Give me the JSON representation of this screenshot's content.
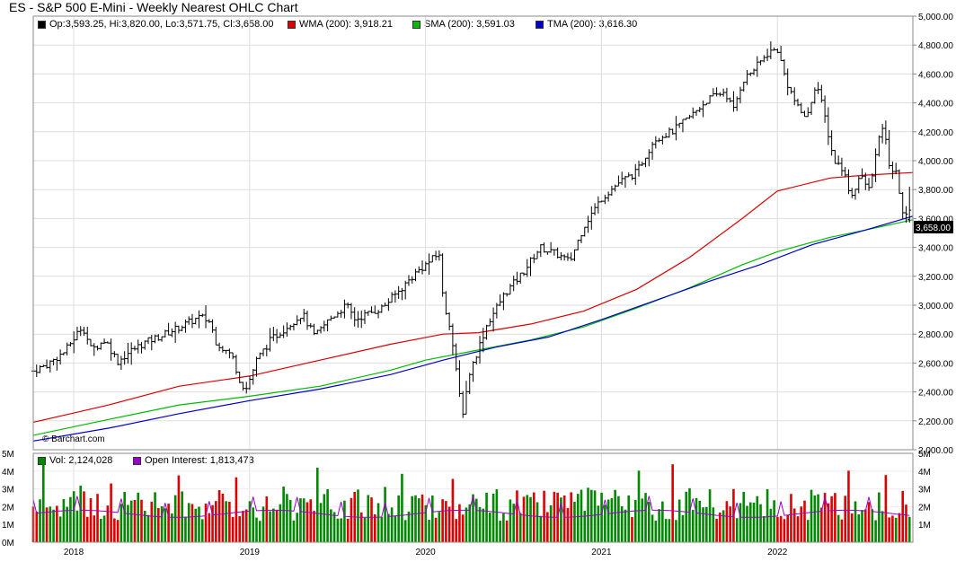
{
  "title": "ES - S&P 500 E-Mini - Weekly Nearest OHLC Chart",
  "ohlc_legend": "Op:3,593.25, Hi:3,820.00, Lo:3,571.75, Cl:3,658.00",
  "wma_legend": "WMA (200): 3,918.21",
  "sma_legend": "SMA (200): 3,591.03",
  "tma_legend": "TMA (200): 3,616.30",
  "vol_legend": "Vol: 2,124,028",
  "oi_legend": "Open Interest: 1,813,473",
  "watermark": "© Barchart.com",
  "last_price_tag": "3,658.00",
  "colors": {
    "wma": "#dd0000",
    "sma": "#00bb00",
    "tma": "#0000cc",
    "oi": "#9900cc",
    "vol_up": "#008800",
    "vol_down": "#dd0000",
    "price_bar": "#000000"
  },
  "chart_data": [
    {
      "type": "ohlc",
      "title": "ES - S&P 500 E-Mini - Weekly Nearest OHLC Chart",
      "ylim": [
        2000,
        5000
      ],
      "y_ticks": [
        "2,000.00",
        "2,200.00",
        "2,400.00",
        "2,600.00",
        "2,800.00",
        "3,000.00",
        "3,200.00",
        "3,400.00",
        "3,600.00",
        "3,800.00",
        "4,000.00",
        "4,200.00",
        "4,400.00",
        "4,600.00",
        "4,800.00",
        "5,000.00"
      ],
      "x_ticks": [
        "2018",
        "2019",
        "2020",
        "2021",
        "2022"
      ],
      "x_tick_dates": [
        2018.0,
        2019.0,
        2020.0,
        2021.0,
        2022.0
      ],
      "xlim": [
        2017.77,
        2022.77
      ],
      "grid": true,
      "price_path": [
        [
          2017.77,
          2545
        ],
        [
          2017.85,
          2590
        ],
        [
          2017.95,
          2680
        ],
        [
          2018.05,
          2860
        ],
        [
          2018.1,
          2690
        ],
        [
          2018.18,
          2760
        ],
        [
          2018.25,
          2610
        ],
        [
          2018.32,
          2680
        ],
        [
          2018.4,
          2740
        ],
        [
          2018.5,
          2790
        ],
        [
          2018.62,
          2860
        ],
        [
          2018.72,
          2920
        ],
        [
          2018.78,
          2880
        ],
        [
          2018.8,
          2760
        ],
        [
          2018.85,
          2700
        ],
        [
          2018.9,
          2650
        ],
        [
          2018.95,
          2460
        ],
        [
          2018.98,
          2420
        ],
        [
          2019.04,
          2620
        ],
        [
          2019.12,
          2760
        ],
        [
          2019.22,
          2860
        ],
        [
          2019.3,
          2940
        ],
        [
          2019.37,
          2780
        ],
        [
          2019.45,
          2900
        ],
        [
          2019.55,
          3000
        ],
        [
          2019.6,
          2900
        ],
        [
          2019.65,
          2930
        ],
        [
          2019.75,
          2980
        ],
        [
          2019.85,
          3100
        ],
        [
          2019.95,
          3230
        ],
        [
          2020.08,
          3360
        ],
        [
          2020.1,
          3020
        ],
        [
          2020.14,
          2860
        ],
        [
          2020.18,
          2480
        ],
        [
          2020.21,
          2250
        ],
        [
          2020.25,
          2530
        ],
        [
          2020.35,
          2870
        ],
        [
          2020.45,
          3080
        ],
        [
          2020.55,
          3220
        ],
        [
          2020.65,
          3400
        ],
        [
          2020.75,
          3350
        ],
        [
          2020.82,
          3300
        ],
        [
          2020.9,
          3550
        ],
        [
          2021.0,
          3740
        ],
        [
          2021.1,
          3850
        ],
        [
          2021.2,
          3920
        ],
        [
          2021.3,
          4150
        ],
        [
          2021.4,
          4200
        ],
        [
          2021.5,
          4300
        ],
        [
          2021.6,
          4420
        ],
        [
          2021.7,
          4480
        ],
        [
          2021.75,
          4350
        ],
        [
          2021.8,
          4550
        ],
        [
          2021.88,
          4650
        ],
        [
          2021.95,
          4750
        ],
        [
          2022.0,
          4770
        ],
        [
          2022.05,
          4550
        ],
        [
          2022.12,
          4350
        ],
        [
          2022.17,
          4300
        ],
        [
          2022.22,
          4550
        ],
        [
          2022.27,
          4300
        ],
        [
          2022.32,
          4000
        ],
        [
          2022.37,
          3950
        ],
        [
          2022.42,
          3750
        ],
        [
          2022.47,
          3900
        ],
        [
          2022.52,
          3800
        ],
        [
          2022.57,
          4100
        ],
        [
          2022.6,
          4250
        ],
        [
          2022.64,
          3950
        ],
        [
          2022.68,
          3900
        ],
        [
          2022.71,
          3650
        ],
        [
          2022.74,
          3593
        ],
        [
          2022.76,
          3658
        ]
      ],
      "last_bar": {
        "open": 3593.25,
        "high": 3820.0,
        "low": 3571.75,
        "close": 3658.0
      },
      "series": [
        {
          "name": "WMA (200)",
          "color": "#dd0000",
          "points": [
            [
              2017.77,
              2190
            ],
            [
              2018.2,
              2310
            ],
            [
              2018.6,
              2440
            ],
            [
              2019.0,
              2510
            ],
            [
              2019.4,
              2620
            ],
            [
              2019.8,
              2730
            ],
            [
              2020.1,
              2800
            ],
            [
              2020.3,
              2810
            ],
            [
              2020.6,
              2870
            ],
            [
              2020.9,
              2960
            ],
            [
              2021.2,
              3110
            ],
            [
              2021.5,
              3330
            ],
            [
              2021.8,
              3600
            ],
            [
              2022.0,
              3790
            ],
            [
              2022.3,
              3880
            ],
            [
              2022.5,
              3900
            ],
            [
              2022.77,
              3918
            ]
          ]
        },
        {
          "name": "SMA (200)",
          "color": "#00bb00",
          "points": [
            [
              2017.77,
              2100
            ],
            [
              2018.2,
              2210
            ],
            [
              2018.6,
              2310
            ],
            [
              2019.0,
              2370
            ],
            [
              2019.4,
              2440
            ],
            [
              2019.8,
              2550
            ],
            [
              2020.0,
              2620
            ],
            [
              2020.3,
              2690
            ],
            [
              2020.6,
              2760
            ],
            [
              2020.9,
              2850
            ],
            [
              2021.2,
              2980
            ],
            [
              2021.5,
              3120
            ],
            [
              2021.8,
              3280
            ],
            [
              2022.0,
              3370
            ],
            [
              2022.3,
              3470
            ],
            [
              2022.5,
              3520
            ],
            [
              2022.77,
              3591
            ]
          ]
        },
        {
          "name": "TMA (200)",
          "color": "#0000cc",
          "points": [
            [
              2017.77,
              2060
            ],
            [
              2018.2,
              2150
            ],
            [
              2018.6,
              2250
            ],
            [
              2019.0,
              2340
            ],
            [
              2019.4,
              2420
            ],
            [
              2019.8,
              2520
            ],
            [
              2020.1,
              2620
            ],
            [
              2020.4,
              2710
            ],
            [
              2020.7,
              2780
            ],
            [
              2021.0,
              2900
            ],
            [
              2021.3,
              3030
            ],
            [
              2021.6,
              3160
            ],
            [
              2021.9,
              3280
            ],
            [
              2022.2,
              3420
            ],
            [
              2022.5,
              3520
            ],
            [
              2022.77,
              3616
            ]
          ]
        }
      ]
    },
    {
      "type": "bar",
      "title": "Volume / Open Interest",
      "ylim": [
        0,
        5
      ],
      "y_ticks_left": [
        "5M",
        "4M",
        "3M",
        "2M",
        "1M",
        "0M"
      ],
      "y_ticks_right": [
        "5M",
        "4M",
        "3M",
        "2M",
        "1M"
      ],
      "series": [
        {
          "name": "Vol",
          "unit": "M"
        },
        {
          "name": "Open Interest",
          "unit": "M",
          "color": "#9900cc"
        }
      ]
    }
  ]
}
